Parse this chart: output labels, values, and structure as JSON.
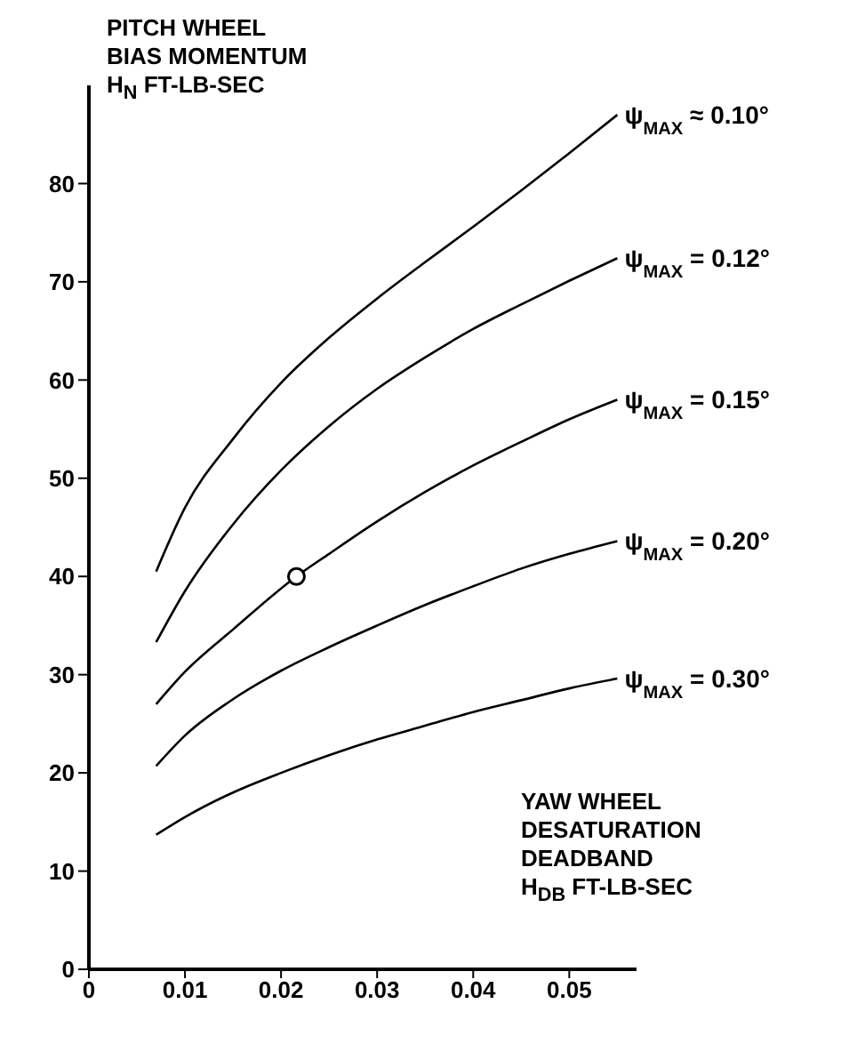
{
  "chart_data": {
    "type": "line",
    "ylabel": "PITCH WHEEL\nBIAS MOMENTUM\nH$_{N}$  FT-LB-SEC",
    "xlabel": "YAW WHEEL\nDESATURATION\nDEADBAND\nH$_{DB}$ FT-LB-SEC",
    "xlim": [
      0,
      0.057
    ],
    "xticks": [
      0,
      0.01,
      0.02,
      0.03,
      0.04,
      0.05
    ],
    "ylim": [
      0,
      90
    ],
    "yticks": [
      0,
      10,
      20,
      30,
      40,
      50,
      60,
      70,
      80
    ],
    "grid": false,
    "legend": false,
    "marker": "none",
    "line_style": "solid",
    "series": [
      {
        "name": "ψ$_{MAX}$ ≈ 0.10°",
        "color": "#000000",
        "x": [
          0.007,
          0.01,
          0.015,
          0.02,
          0.025,
          0.03,
          0.035,
          0.04,
          0.045,
          0.05,
          0.055
        ],
        "values": [
          40.5,
          47,
          54,
          59.7,
          64.3,
          68.3,
          72,
          75.6,
          79.3,
          83.1,
          87
        ]
      },
      {
        "name": "ψ$_{MAX}$ = 0.12°",
        "color": "#000000",
        "x": [
          0.007,
          0.01,
          0.015,
          0.02,
          0.025,
          0.03,
          0.035,
          0.04,
          0.045,
          0.05,
          0.055
        ],
        "values": [
          33.3,
          38.5,
          45.3,
          50.8,
          55.3,
          59.1,
          62.3,
          65.2,
          67.7,
          70.1,
          72.4
        ]
      },
      {
        "name": "ψ$_{MAX}$ = 0.15°",
        "color": "#000000",
        "x": [
          0.007,
          0.01,
          0.015,
          0.0216,
          0.025,
          0.03,
          0.035,
          0.04,
          0.045,
          0.05,
          0.055
        ],
        "values": [
          27,
          30.3,
          34.6,
          40,
          42.3,
          45.6,
          48.6,
          51.3,
          53.7,
          56,
          58
        ]
      },
      {
        "name": "ψ$_{MAX}$ = 0.20°",
        "color": "#000000",
        "x": [
          0.007,
          0.01,
          0.015,
          0.02,
          0.025,
          0.03,
          0.035,
          0.04,
          0.045,
          0.05,
          0.055
        ],
        "values": [
          20.7,
          23.8,
          27.5,
          30.4,
          32.8,
          35,
          37.1,
          39,
          40.8,
          42.3,
          43.6
        ]
      },
      {
        "name": "ψ$_{MAX}$ = 0.30°",
        "color": "#000000",
        "x": [
          0.007,
          0.01,
          0.015,
          0.02,
          0.025,
          0.03,
          0.035,
          0.04,
          0.045,
          0.05,
          0.055
        ],
        "values": [
          13.7,
          15.5,
          18,
          20,
          21.8,
          23.4,
          24.8,
          26.2,
          27.4,
          28.6,
          29.6
        ]
      },
      {
        "type": "scatter",
        "marker": "circle",
        "color": "#000000",
        "x": [
          0.0216
        ],
        "values": [
          40
        ]
      }
    ]
  }
}
